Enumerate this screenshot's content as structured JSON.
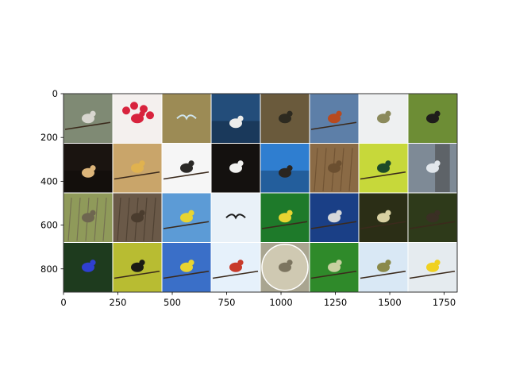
{
  "chart_data": {
    "type": "image-grid",
    "title": "",
    "xlabel": "",
    "ylabel": "",
    "xlim": [
      0,
      1810
    ],
    "ylim": [
      906,
      0
    ],
    "grid": false,
    "x_ticks": [
      0,
      250,
      500,
      750,
      1000,
      1250,
      1500,
      1750
    ],
    "y_ticks": [
      0,
      200,
      400,
      600,
      800
    ],
    "x_tick_labels": [
      "0",
      "250",
      "500",
      "750",
      "1000",
      "1250",
      "1500",
      "1750"
    ],
    "y_tick_labels": [
      "0",
      "200",
      "400",
      "600",
      "800"
    ],
    "grid_rows": 4,
    "grid_cols": 8,
    "tiles": [
      {
        "row": 0,
        "col": 0,
        "bg": "#7f8a74",
        "accent": "#d8d6cf",
        "shape": "perch"
      },
      {
        "row": 0,
        "col": 1,
        "bg": "#f4f0ee",
        "accent": "#d8233d",
        "shape": "flower"
      },
      {
        "row": 0,
        "col": 2,
        "bg": "#9c8b55",
        "accent": "#cfe4ec",
        "shape": "flight"
      },
      {
        "row": 0,
        "col": 3,
        "bg": "#234d7a",
        "accent": "#ececea",
        "shape": "water"
      },
      {
        "row": 0,
        "col": 4,
        "bg": "#6a5a3c",
        "accent": "#2d2a20",
        "shape": "ground"
      },
      {
        "row": 0,
        "col": 5,
        "bg": "#5d7fa8",
        "accent": "#b84a1f",
        "shape": "perch"
      },
      {
        "row": 0,
        "col": 6,
        "bg": "#eef0f1",
        "accent": "#8b8a5c",
        "shape": "ground"
      },
      {
        "row": 0,
        "col": 7,
        "bg": "#6d8d35",
        "accent": "#1f1d1b",
        "shape": "ground"
      },
      {
        "row": 1,
        "col": 0,
        "bg": "#1a1410",
        "accent": "#dcb57a",
        "shape": "water"
      },
      {
        "row": 1,
        "col": 1,
        "bg": "#c9a56a",
        "accent": "#e0b24f",
        "shape": "perch"
      },
      {
        "row": 1,
        "col": 2,
        "bg": "#f6f6f6",
        "accent": "#2a2826",
        "shape": "branch"
      },
      {
        "row": 1,
        "col": 3,
        "bg": "#14110f",
        "accent": "#f1f1ef",
        "shape": "ground"
      },
      {
        "row": 1,
        "col": 4,
        "bg": "#2f7ed0",
        "accent": "#2a2520",
        "shape": "water"
      },
      {
        "row": 1,
        "col": 5,
        "bg": "#8a6a45",
        "accent": "#6b4f30",
        "shape": "reeds"
      },
      {
        "row": 1,
        "col": 6,
        "bg": "#c7d83a",
        "accent": "#1d4a28",
        "shape": "perch"
      },
      {
        "row": 1,
        "col": 7,
        "bg": "#7e8a96",
        "accent": "#e2e7ec",
        "shape": "trunk"
      },
      {
        "row": 2,
        "col": 0,
        "bg": "#8f9a5a",
        "accent": "#6e6650",
        "shape": "reeds"
      },
      {
        "row": 2,
        "col": 1,
        "bg": "#6a5948",
        "accent": "#4a3c2e",
        "shape": "reeds"
      },
      {
        "row": 2,
        "col": 2,
        "bg": "#5c9bd6",
        "accent": "#e8d431",
        "shape": "branch"
      },
      {
        "row": 2,
        "col": 3,
        "bg": "#e9f1f8",
        "accent": "#1e1e1e",
        "shape": "flight"
      },
      {
        "row": 2,
        "col": 4,
        "bg": "#1e7a2a",
        "accent": "#e8d431",
        "shape": "perch"
      },
      {
        "row": 2,
        "col": 5,
        "bg": "#1a3f86",
        "accent": "#d6d8da",
        "shape": "perch"
      },
      {
        "row": 2,
        "col": 6,
        "bg": "#2b2e16",
        "accent": "#d8d0a2",
        "shape": "branch"
      },
      {
        "row": 2,
        "col": 7,
        "bg": "#2e3a1a",
        "accent": "#3a2f24",
        "shape": "branch"
      },
      {
        "row": 3,
        "col": 0,
        "bg": "#1e3b1e",
        "accent": "#2f3fd0",
        "shape": "ground"
      },
      {
        "row": 3,
        "col": 1,
        "bg": "#b8bc32",
        "accent": "#1b1b14",
        "shape": "branch"
      },
      {
        "row": 3,
        "col": 2,
        "bg": "#3a6fc8",
        "accent": "#e8d431",
        "shape": "branch"
      },
      {
        "row": 3,
        "col": 3,
        "bg": "#e6f1fb",
        "accent": "#c83a2a",
        "shape": "branch"
      },
      {
        "row": 3,
        "col": 4,
        "bg": "#a9a590",
        "accent": "#7c7560",
        "shape": "circle"
      },
      {
        "row": 3,
        "col": 5,
        "bg": "#2f8a2a",
        "accent": "#c8d0a0",
        "shape": "perch"
      },
      {
        "row": 3,
        "col": 6,
        "bg": "#d9e8f5",
        "accent": "#8a8a4a",
        "shape": "branch"
      },
      {
        "row": 3,
        "col": 7,
        "bg": "#e5ebef",
        "accent": "#f0d120",
        "shape": "branch"
      }
    ]
  }
}
